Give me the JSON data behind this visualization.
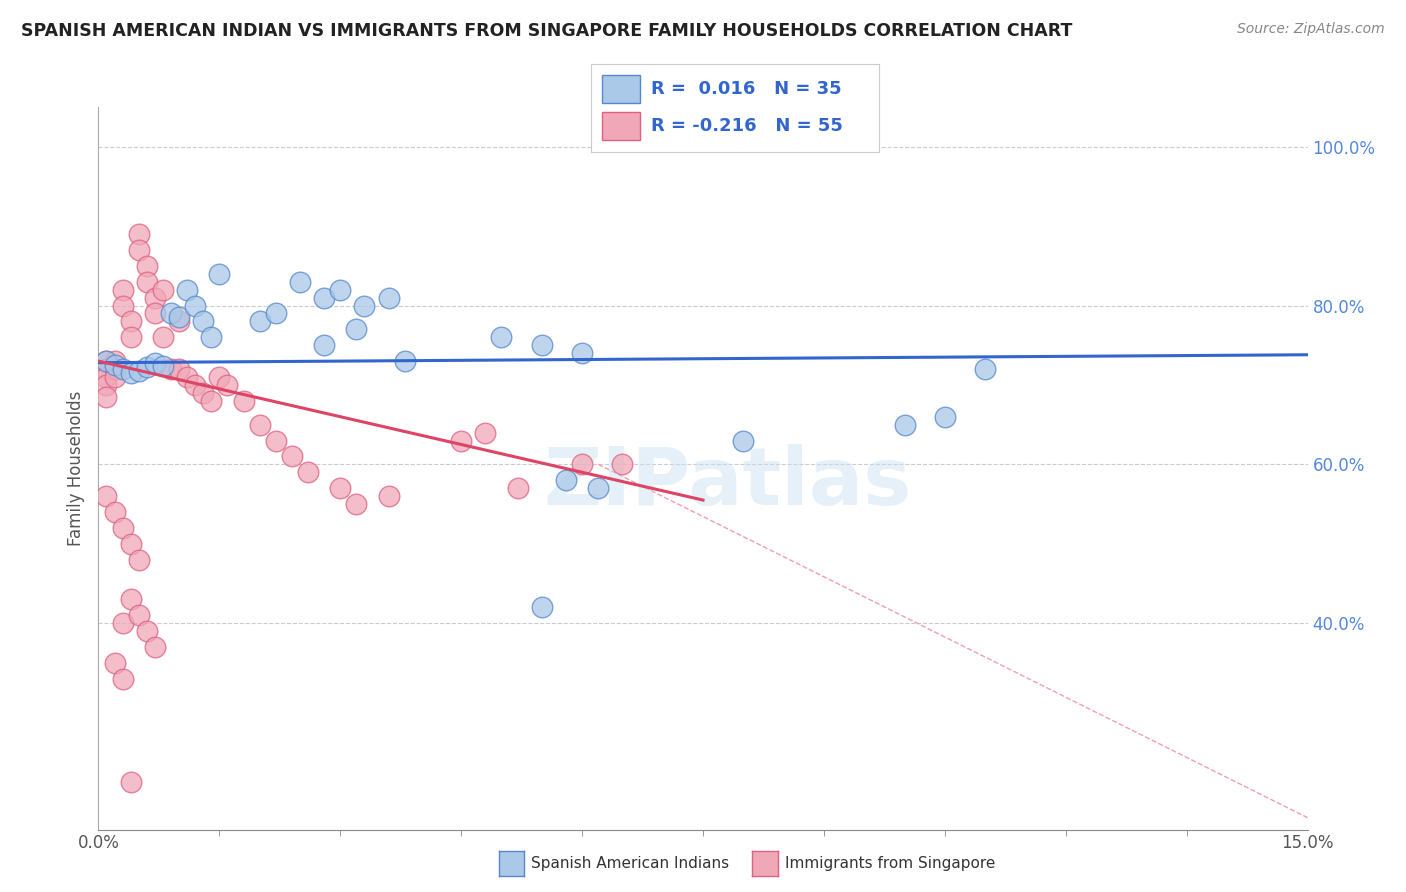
{
  "title": "SPANISH AMERICAN INDIAN VS IMMIGRANTS FROM SINGAPORE FAMILY HOUSEHOLDS CORRELATION CHART",
  "source": "Source: ZipAtlas.com",
  "ylabel": "Family Households",
  "y_ticks": [
    "40.0%",
    "60.0%",
    "80.0%",
    "100.0%"
  ],
  "y_tick_vals": [
    0.4,
    0.6,
    0.8,
    1.0
  ],
  "x_range": [
    0.0,
    0.15
  ],
  "y_range": [
    0.14,
    1.05
  ],
  "blue_color": "#aac8e8",
  "pink_color": "#f0a8b8",
  "blue_edge_color": "#5588cc",
  "pink_edge_color": "#e06080",
  "blue_line_color": "#3366cc",
  "pink_line_color": "#dd4466",
  "diag_line_color": "#f0a0b0",
  "legend_text_color": "#3366cc",
  "axis_label_color": "#555555",
  "y_axis_color": "#5588dd",
  "background_color": "#ffffff",
  "watermark": "ZIPatlas",
  "blue_scatter_x": [
    0.001,
    0.002,
    0.003,
    0.004,
    0.005,
    0.006,
    0.007,
    0.008,
    0.009,
    0.01,
    0.011,
    0.012,
    0.013,
    0.014,
    0.015,
    0.02,
    0.022,
    0.025,
    0.028,
    0.03,
    0.033,
    0.036,
    0.028,
    0.032,
    0.038,
    0.05,
    0.055,
    0.06,
    0.058,
    0.062,
    0.1,
    0.105,
    0.11,
    0.055,
    0.08
  ],
  "blue_scatter_y": [
    0.73,
    0.725,
    0.72,
    0.715,
    0.718,
    0.722,
    0.728,
    0.724,
    0.79,
    0.785,
    0.82,
    0.8,
    0.78,
    0.76,
    0.84,
    0.78,
    0.79,
    0.83,
    0.81,
    0.82,
    0.8,
    0.81,
    0.75,
    0.77,
    0.73,
    0.76,
    0.75,
    0.74,
    0.58,
    0.57,
    0.65,
    0.66,
    0.72,
    0.42,
    0.63
  ],
  "pink_scatter_x": [
    0.001,
    0.001,
    0.001,
    0.001,
    0.001,
    0.002,
    0.002,
    0.002,
    0.003,
    0.003,
    0.004,
    0.004,
    0.005,
    0.005,
    0.006,
    0.006,
    0.007,
    0.007,
    0.008,
    0.008,
    0.009,
    0.01,
    0.01,
    0.011,
    0.012,
    0.013,
    0.014,
    0.015,
    0.016,
    0.018,
    0.02,
    0.022,
    0.024,
    0.026,
    0.03,
    0.032,
    0.036,
    0.045,
    0.048,
    0.052,
    0.06,
    0.065,
    0.001,
    0.002,
    0.003,
    0.004,
    0.005,
    0.003,
    0.004,
    0.005,
    0.006,
    0.007,
    0.002,
    0.003,
    0.004
  ],
  "pink_scatter_y": [
    0.73,
    0.72,
    0.71,
    0.7,
    0.685,
    0.73,
    0.72,
    0.71,
    0.82,
    0.8,
    0.78,
    0.76,
    0.89,
    0.87,
    0.85,
    0.83,
    0.81,
    0.79,
    0.82,
    0.76,
    0.72,
    0.78,
    0.72,
    0.71,
    0.7,
    0.69,
    0.68,
    0.71,
    0.7,
    0.68,
    0.65,
    0.63,
    0.61,
    0.59,
    0.57,
    0.55,
    0.56,
    0.63,
    0.64,
    0.57,
    0.6,
    0.6,
    0.56,
    0.54,
    0.52,
    0.5,
    0.48,
    0.4,
    0.43,
    0.41,
    0.39,
    0.37,
    0.35,
    0.33,
    0.2
  ],
  "blue_trend_x": [
    0.0,
    0.15
  ],
  "blue_trend_y": [
    0.728,
    0.738
  ],
  "pink_trend_x": [
    0.0,
    0.075
  ],
  "pink_trend_y": [
    0.73,
    0.555
  ],
  "diag_line_x": [
    0.062,
    0.15
  ],
  "diag_line_y": [
    0.6,
    0.155
  ]
}
